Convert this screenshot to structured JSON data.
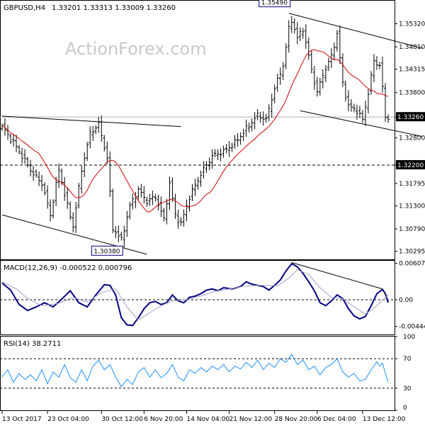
{
  "header": {
    "symbol_tf": "GBPUSD,H4",
    "ohlc": "1.33201  1.33313  1.33009  1.33260",
    "watermark": "ActionForex.com"
  },
  "colors": {
    "bar": "#000000",
    "ma": "#d00000",
    "macd_main": "#000080",
    "macd_signal": "#a0a0c8",
    "rsi": "#1e90ff",
    "trendline": "#000000",
    "grid": "#000000",
    "label_border": "#000080"
  },
  "chart_data": [
    {
      "type": "ohlc",
      "panel": "price",
      "title": "GBPUSD,H4",
      "y_ticks": [
        "1.35320",
        "1.34810",
        "1.34315",
        "1.33800",
        "1.33260",
        "1.32800",
        "1.32200",
        "1.31795",
        "1.31300",
        "1.30790",
        "1.30295"
      ],
      "ylim": [
        1.3015,
        1.3575
      ],
      "current_price": "1.33260",
      "level_line": "1.32200",
      "annotations": [
        {
          "text": "1.35490",
          "at": "high 1.35490"
        },
        {
          "text": "1.30380",
          "at": "low 1.30380"
        }
      ],
      "moving_average_color": "#d00000",
      "path_anchors": [
        {
          "t": 0,
          "p": 1.3305
        },
        {
          "t": 5,
          "p": 1.326
        },
        {
          "t": 8,
          "p": 1.323
        },
        {
          "t": 11,
          "p": 1.32
        },
        {
          "t": 14,
          "p": 1.318
        },
        {
          "t": 17,
          "p": 1.311
        },
        {
          "t": 20,
          "p": 1.321
        },
        {
          "t": 23,
          "p": 1.313
        },
        {
          "t": 25,
          "p": 1.3085
        },
        {
          "t": 28,
          "p": 1.321
        },
        {
          "t": 31,
          "p": 1.329
        },
        {
          "t": 34,
          "p": 1.331
        },
        {
          "t": 37,
          "p": 1.3235
        },
        {
          "t": 39,
          "p": 1.308
        },
        {
          "t": 42,
          "p": 1.3055
        },
        {
          "t": 45,
          "p": 1.313
        },
        {
          "t": 48,
          "p": 1.3165
        },
        {
          "t": 51,
          "p": 1.314
        },
        {
          "t": 54,
          "p": 1.315
        },
        {
          "t": 57,
          "p": 1.31
        },
        {
          "t": 59,
          "p": 1.318
        },
        {
          "t": 61,
          "p": 1.311
        },
        {
          "t": 63,
          "p": 1.309
        },
        {
          "t": 66,
          "p": 1.315
        },
        {
          "t": 70,
          "p": 1.32
        },
        {
          "t": 74,
          "p": 1.324
        },
        {
          "t": 78,
          "p": 1.325
        },
        {
          "t": 82,
          "p": 1.327
        },
        {
          "t": 86,
          "p": 1.33
        },
        {
          "t": 90,
          "p": 1.333
        },
        {
          "t": 93,
          "p": 1.332
        },
        {
          "t": 96,
          "p": 1.339
        },
        {
          "t": 99,
          "p": 1.344
        },
        {
          "t": 101,
          "p": 1.352
        },
        {
          "t": 102,
          "p": 1.354
        },
        {
          "t": 104,
          "p": 1.35
        },
        {
          "t": 106,
          "p": 1.352
        },
        {
          "t": 109,
          "p": 1.343
        },
        {
          "t": 111,
          "p": 1.338
        },
        {
          "t": 113,
          "p": 1.342
        },
        {
          "t": 116,
          "p": 1.346
        },
        {
          "t": 118,
          "p": 1.351
        },
        {
          "t": 120,
          "p": 1.34
        },
        {
          "t": 122,
          "p": 1.335
        },
        {
          "t": 125,
          "p": 1.334
        },
        {
          "t": 127,
          "p": 1.332
        },
        {
          "t": 129,
          "p": 1.338
        },
        {
          "t": 131,
          "p": 1.345
        },
        {
          "t": 133,
          "p": 1.344
        },
        {
          "t": 134,
          "p": 1.339
        },
        {
          "t": 135,
          "p": 1.3326
        }
      ],
      "trendlines": [
        {
          "t1": 0,
          "p1": 1.3328,
          "t2": 63,
          "p2": 1.3305
        },
        {
          "t1": 0,
          "p1": 1.311,
          "t2": 51,
          "p2": 1.3023
        },
        {
          "t1": 101,
          "p1": 1.3555,
          "t2": 148,
          "p2": 1.3478
        },
        {
          "t1": 105,
          "p1": 1.334,
          "t2": 148,
          "p2": 1.3283
        }
      ]
    },
    {
      "type": "line",
      "panel": "macd",
      "title": "MACD(12,26,9) -0.000522 0.000796",
      "y_ticks": [
        "0.006073",
        "0.00",
        "-0.004441"
      ],
      "ylim": [
        -0.0058,
        0.0065
      ],
      "series": [
        {
          "color": "#000080",
          "anchors": [
            {
              "t": 0,
              "v": 0.0028
            },
            {
              "t": 3,
              "v": 0.0016
            },
            {
              "t": 6,
              "v": -0.0008
            },
            {
              "t": 9,
              "v": -0.0018
            },
            {
              "t": 12,
              "v": -0.0012
            },
            {
              "t": 15,
              "v": -0.0005
            },
            {
              "t": 18,
              "v": -0.0012
            },
            {
              "t": 21,
              "v": 0.0001
            },
            {
              "t": 24,
              "v": 0.0015
            },
            {
              "t": 27,
              "v": -0.0005
            },
            {
              "t": 30,
              "v": -0.0012
            },
            {
              "t": 33,
              "v": 0.0008
            },
            {
              "t": 36,
              "v": 0.0025
            },
            {
              "t": 38,
              "v": 0.0024
            },
            {
              "t": 40,
              "v": 0.0008
            },
            {
              "t": 42,
              "v": -0.003
            },
            {
              "t": 44,
              "v": -0.0042
            },
            {
              "t": 46,
              "v": -0.0043
            },
            {
              "t": 48,
              "v": -0.003
            },
            {
              "t": 50,
              "v": -0.0015
            },
            {
              "t": 52,
              "v": -0.0005
            },
            {
              "t": 54,
              "v": -0.0003
            },
            {
              "t": 56,
              "v": -0.0008
            },
            {
              "t": 58,
              "v": -0.0005
            },
            {
              "t": 60,
              "v": 0.0008
            },
            {
              "t": 62,
              "v": -0.0002
            },
            {
              "t": 64,
              "v": -0.0005
            },
            {
              "t": 66,
              "v": 0.0004
            },
            {
              "t": 68,
              "v": 0.0006
            },
            {
              "t": 70,
              "v": 0.001
            },
            {
              "t": 72,
              "v": 0.0016
            },
            {
              "t": 74,
              "v": 0.0018
            },
            {
              "t": 76,
              "v": 0.0015
            },
            {
              "t": 78,
              "v": 0.002
            },
            {
              "t": 81,
              "v": 0.0018
            },
            {
              "t": 84,
              "v": 0.0022
            },
            {
              "t": 86,
              "v": 0.003
            },
            {
              "t": 88,
              "v": 0.0026
            },
            {
              "t": 90,
              "v": 0.0024
            },
            {
              "t": 92,
              "v": 0.0022
            },
            {
              "t": 94,
              "v": 0.0016
            },
            {
              "t": 96,
              "v": 0.0024
            },
            {
              "t": 98,
              "v": 0.0033
            },
            {
              "t": 100,
              "v": 0.0048
            },
            {
              "t": 102,
              "v": 0.006
            },
            {
              "t": 104,
              "v": 0.0055
            },
            {
              "t": 106,
              "v": 0.0044
            },
            {
              "t": 108,
              "v": 0.003
            },
            {
              "t": 110,
              "v": 0.0015
            },
            {
              "t": 112,
              "v": -0.0005
            },
            {
              "t": 114,
              "v": -0.001
            },
            {
              "t": 116,
              "v": -0.0002
            },
            {
              "t": 118,
              "v": 0.0008
            },
            {
              "t": 120,
              "v": 0.0002
            },
            {
              "t": 122,
              "v": -0.0015
            },
            {
              "t": 124,
              "v": -0.0027
            },
            {
              "t": 126,
              "v": -0.0032
            },
            {
              "t": 128,
              "v": -0.0028
            },
            {
              "t": 130,
              "v": -0.001
            },
            {
              "t": 132,
              "v": 0.001
            },
            {
              "t": 134,
              "v": 0.0017
            },
            {
              "t": 135,
              "v": 0.001
            },
            {
              "t": 136,
              "v": -0.0005
            }
          ]
        },
        {
          "color": "#a0a0c8",
          "anchors": [
            {
              "t": 0,
              "v": 0.003
            },
            {
              "t": 5,
              "v": 0.0018
            },
            {
              "t": 9,
              "v": 0.0002
            },
            {
              "t": 14,
              "v": -0.001
            },
            {
              "t": 20,
              "v": -0.0006
            },
            {
              "t": 25,
              "v": 0.0004
            },
            {
              "t": 30,
              "v": -0.0004
            },
            {
              "t": 35,
              "v": 0.0012
            },
            {
              "t": 40,
              "v": 0.0018
            },
            {
              "t": 44,
              "v": -0.0012
            },
            {
              "t": 48,
              "v": -0.0034
            },
            {
              "t": 52,
              "v": -0.0022
            },
            {
              "t": 56,
              "v": -0.001
            },
            {
              "t": 60,
              "v": -0.0002
            },
            {
              "t": 65,
              "v": 0.0
            },
            {
              "t": 70,
              "v": 0.0006
            },
            {
              "t": 75,
              "v": 0.0014
            },
            {
              "t": 80,
              "v": 0.0018
            },
            {
              "t": 86,
              "v": 0.0023
            },
            {
              "t": 92,
              "v": 0.0024
            },
            {
              "t": 97,
              "v": 0.0023
            },
            {
              "t": 101,
              "v": 0.0036
            },
            {
              "t": 104,
              "v": 0.005
            },
            {
              "t": 108,
              "v": 0.0042
            },
            {
              "t": 112,
              "v": 0.002
            },
            {
              "t": 116,
              "v": 0.0004
            },
            {
              "t": 120,
              "v": 0.0002
            },
            {
              "t": 124,
              "v": -0.0012
            },
            {
              "t": 128,
              "v": -0.0024
            },
            {
              "t": 132,
              "v": -0.001
            },
            {
              "t": 136,
              "v": 0.0008
            }
          ]
        }
      ],
      "trendline": {
        "t1": 102,
        "v1": 0.0062,
        "t2": 134,
        "v2": 0.0018
      }
    },
    {
      "type": "line",
      "panel": "rsi",
      "title": "RSI(14) 38.2711",
      "y_ticks": [
        "100",
        "70",
        "30",
        "0"
      ],
      "ylim": [
        0,
        100
      ],
      "levels": [
        70,
        30
      ],
      "series": [
        {
          "color": "#1e90ff",
          "anchors": [
            {
              "t": 0,
              "v": 45
            },
            {
              "t": 2,
              "v": 55
            },
            {
              "t": 4,
              "v": 38
            },
            {
              "t": 6,
              "v": 50
            },
            {
              "t": 8,
              "v": 42
            },
            {
              "t": 10,
              "v": 48
            },
            {
              "t": 12,
              "v": 40
            },
            {
              "t": 14,
              "v": 55
            },
            {
              "t": 16,
              "v": 36
            },
            {
              "t": 18,
              "v": 52
            },
            {
              "t": 20,
              "v": 45
            },
            {
              "t": 22,
              "v": 62
            },
            {
              "t": 24,
              "v": 44
            },
            {
              "t": 26,
              "v": 38
            },
            {
              "t": 28,
              "v": 55
            },
            {
              "t": 30,
              "v": 40
            },
            {
              "t": 32,
              "v": 60
            },
            {
              "t": 34,
              "v": 68
            },
            {
              "t": 36,
              "v": 55
            },
            {
              "t": 38,
              "v": 62
            },
            {
              "t": 40,
              "v": 45
            },
            {
              "t": 42,
              "v": 32
            },
            {
              "t": 44,
              "v": 42
            },
            {
              "t": 46,
              "v": 35
            },
            {
              "t": 48,
              "v": 52
            },
            {
              "t": 50,
              "v": 58
            },
            {
              "t": 52,
              "v": 45
            },
            {
              "t": 54,
              "v": 55
            },
            {
              "t": 56,
              "v": 44
            },
            {
              "t": 58,
              "v": 50
            },
            {
              "t": 60,
              "v": 62
            },
            {
              "t": 62,
              "v": 45
            },
            {
              "t": 64,
              "v": 40
            },
            {
              "t": 66,
              "v": 55
            },
            {
              "t": 68,
              "v": 50
            },
            {
              "t": 70,
              "v": 58
            },
            {
              "t": 72,
              "v": 52
            },
            {
              "t": 74,
              "v": 60
            },
            {
              "t": 76,
              "v": 55
            },
            {
              "t": 78,
              "v": 62
            },
            {
              "t": 80,
              "v": 52
            },
            {
              "t": 82,
              "v": 60
            },
            {
              "t": 84,
              "v": 56
            },
            {
              "t": 86,
              "v": 65
            },
            {
              "t": 88,
              "v": 58
            },
            {
              "t": 90,
              "v": 68
            },
            {
              "t": 92,
              "v": 55
            },
            {
              "t": 94,
              "v": 64
            },
            {
              "t": 96,
              "v": 58
            },
            {
              "t": 98,
              "v": 70
            },
            {
              "t": 100,
              "v": 65
            },
            {
              "t": 102,
              "v": 76
            },
            {
              "t": 104,
              "v": 62
            },
            {
              "t": 106,
              "v": 68
            },
            {
              "t": 108,
              "v": 55
            },
            {
              "t": 110,
              "v": 60
            },
            {
              "t": 112,
              "v": 48
            },
            {
              "t": 114,
              "v": 58
            },
            {
              "t": 116,
              "v": 62
            },
            {
              "t": 118,
              "v": 70
            },
            {
              "t": 120,
              "v": 52
            },
            {
              "t": 122,
              "v": 45
            },
            {
              "t": 124,
              "v": 50
            },
            {
              "t": 126,
              "v": 40
            },
            {
              "t": 128,
              "v": 42
            },
            {
              "t": 130,
              "v": 55
            },
            {
              "t": 132,
              "v": 66
            },
            {
              "t": 133,
              "v": 60
            },
            {
              "t": 134,
              "v": 64
            },
            {
              "t": 135,
              "v": 50
            },
            {
              "t": 136,
              "v": 38
            }
          ]
        }
      ]
    }
  ],
  "x_axis": {
    "labels": [
      "13 Oct 2017",
      "23 Oct 04:00",
      "30 Oct 12:00",
      "6 Nov 20:00",
      "14 Nov 04:00",
      "21 Nov 12:00",
      "28 Nov 20:00",
      "6 Dec 04:00",
      "13 Dec 12:00"
    ],
    "label_positions_t": [
      0,
      16,
      35,
      50,
      65,
      80,
      96,
      111,
      127
    ]
  }
}
